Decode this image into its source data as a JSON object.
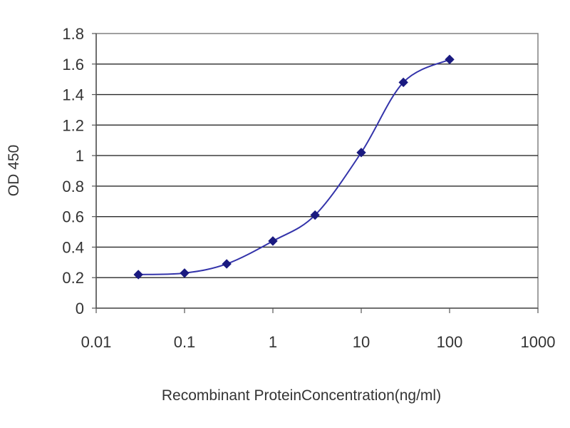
{
  "chart_data": {
    "type": "line",
    "title": "",
    "xlabel": "Recombinant ProteinConcentration(ng/ml)",
    "ylabel": "OD 450",
    "x_scale": "log",
    "xlim": [
      0.01,
      1000
    ],
    "ylim": [
      0,
      1.8
    ],
    "x_ticks": [
      0.01,
      0.1,
      1,
      10,
      100,
      1000
    ],
    "x_tick_labels": [
      "0.01",
      "0.1",
      "1",
      "10",
      "100",
      "1000"
    ],
    "y_ticks": [
      0,
      0.2,
      0.4,
      0.6,
      0.8,
      1,
      1.2,
      1.4,
      1.6,
      1.8
    ],
    "y_tick_labels": [
      "0",
      "0.2",
      "0.4",
      "0.6",
      "0.8",
      "1",
      "1.2",
      "1.4",
      "1.6",
      "1.8"
    ],
    "grid": "horizontal",
    "legend": "none",
    "series": [
      {
        "color": "#3333aa",
        "marker_color": "#1a1a80",
        "x": [
          0.03,
          0.1,
          0.3,
          1,
          3,
          10,
          30,
          100
        ],
        "y": [
          0.22,
          0.23,
          0.29,
          0.44,
          0.61,
          1.02,
          1.48,
          1.63
        ]
      }
    ]
  }
}
